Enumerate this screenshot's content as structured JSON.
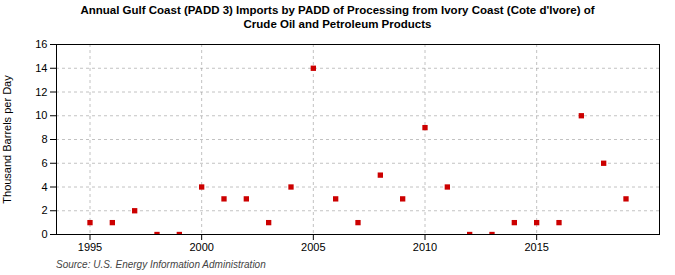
{
  "chart_data": {
    "type": "scatter",
    "title": "Annual Gulf Coast (PADD 3) Imports by PADD of Processing from Ivory Coast (Cote d'Ivore) of\nCrude Oil and Petroleum Products",
    "ylabel": "Thousand Barrels per Day",
    "annotations": [
      "Source: U.S. Energy Information Administration"
    ],
    "x": [
      1995,
      1996,
      1997,
      1998,
      1999,
      2000,
      2001,
      2002,
      2003,
      2004,
      2005,
      2006,
      2007,
      2008,
      2009,
      2010,
      2011,
      2012,
      2013,
      2014,
      2015,
      2016,
      2017,
      2018,
      2019
    ],
    "values": [
      1,
      1,
      2,
      0,
      0,
      4,
      3,
      3,
      1,
      4,
      14,
      3,
      1,
      5,
      3,
      9,
      4,
      0,
      0,
      1,
      1,
      1,
      10,
      6,
      3
    ],
    "color": "#cc0000",
    "marker": "square",
    "xlim": [
      1993.5,
      2020.5
    ],
    "xticks": [
      1995,
      2000,
      2005,
      2010,
      2015
    ],
    "ylim": [
      0,
      16
    ],
    "yticks": [
      0,
      2,
      4,
      6,
      8,
      10,
      12,
      14,
      16
    ],
    "grid": true
  }
}
